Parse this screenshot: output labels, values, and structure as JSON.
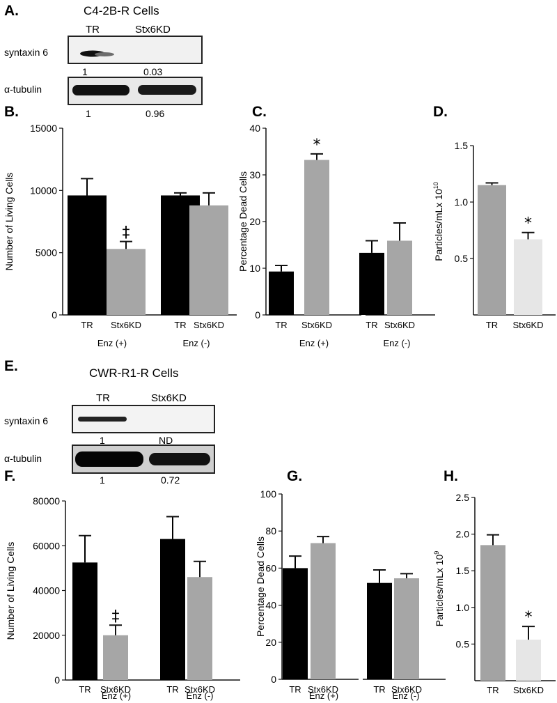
{
  "panels": {
    "A": "A.",
    "B": "B.",
    "C": "C.",
    "D": "D.",
    "E": "E.",
    "F": "F.",
    "G": "G.",
    "H": "H."
  },
  "blot_a": {
    "title": "C4-2B-R Cells",
    "lane_tr": "TR",
    "lane_kd": "Stx6KD",
    "row1_label": "syntaxin 6",
    "row1_q_tr": "1",
    "row1_q_kd": "0.03",
    "row2_label": "α-tubulin",
    "row2_q_tr": "1",
    "row2_q_kd": "0.96"
  },
  "blot_e": {
    "title": "CWR-R1-R Cells",
    "lane_tr": "TR",
    "lane_kd": "Stx6KD",
    "row1_label": "syntaxin 6",
    "row1_q_tr": "1",
    "row1_q_kd": "ND",
    "row2_label": "α-tubulin",
    "row2_q_tr": "1",
    "row2_q_kd": "0.72"
  },
  "colors": {
    "black_bar": "#000000",
    "gray_bar": "#a6a6a6",
    "dark_gray_bar": "#a3a3a3",
    "light_bar": "#e6e6e6"
  },
  "chart_data": [
    {
      "id": "B",
      "type": "bar",
      "ylabel": "Number of Living Cells",
      "ylim": [
        0,
        15000
      ],
      "yticks": [
        "0",
        "5000",
        "10000",
        "15000"
      ],
      "categories": [
        "TR",
        "Stx6KD",
        "TR",
        "Stx6KD"
      ],
      "groups": [
        "Enz (+)",
        "Enz (-)"
      ],
      "values": [
        9600,
        5300,
        9600,
        8800
      ],
      "errors": [
        1350,
        600,
        200,
        1000
      ],
      "colors": [
        "#000000",
        "#a6a6a6",
        "#000000",
        "#a6a6a6"
      ],
      "annotations": [
        {
          "bar": 1,
          "text": "‡"
        }
      ]
    },
    {
      "id": "C",
      "type": "bar",
      "ylabel": "Percentage Dead Cells",
      "ylim": [
        0,
        40
      ],
      "yticks": [
        "0",
        "10",
        "20",
        "30",
        "40"
      ],
      "categories": [
        "TR",
        "Stx6KD",
        "TR",
        "Stx6KD"
      ],
      "groups": [
        "Enz (+)",
        "Enz (-)"
      ],
      "values": [
        9.3,
        33.2,
        13.3,
        15.9
      ],
      "errors": [
        1.3,
        1.3,
        2.6,
        3.8
      ],
      "colors": [
        "#000000",
        "#a6a6a6",
        "#000000",
        "#a6a6a6"
      ],
      "annotations": [
        {
          "bar": 1,
          "text": "*"
        }
      ]
    },
    {
      "id": "D",
      "type": "bar",
      "ylabel": "Particles/mLx 10",
      "ylabel_sup": "10",
      "ylim": [
        0,
        1.5
      ],
      "yticks": [
        "0.5",
        "1.0",
        "1.5"
      ],
      "categories": [
        "TR",
        "Stx6KD"
      ],
      "values": [
        1.15,
        0.67
      ],
      "errors": [
        0.02,
        0.06
      ],
      "colors": [
        "#a3a3a3",
        "#e6e6e6"
      ],
      "annotations": [
        {
          "bar": 1,
          "text": "*"
        }
      ]
    },
    {
      "id": "F",
      "type": "bar",
      "ylabel": "Number of Living Cells",
      "ylim": [
        0,
        80000
      ],
      "yticks": [
        "0",
        "20000",
        "40000",
        "60000",
        "80000"
      ],
      "categories": [
        "TR",
        "Stx6KD",
        "TR",
        "Stx6KD"
      ],
      "groups": [
        "Enz (+)",
        "Enz (-)"
      ],
      "values": [
        52500,
        20000,
        63000,
        46000
      ],
      "errors": [
        12000,
        4500,
        10000,
        7000
      ],
      "colors": [
        "#000000",
        "#a6a6a6",
        "#000000",
        "#a6a6a6"
      ],
      "annotations": [
        {
          "bar": 1,
          "text": "‡"
        }
      ]
    },
    {
      "id": "G",
      "type": "bar",
      "ylabel": "Percentage Dead Cells",
      "ylim": [
        0,
        100
      ],
      "yticks": [
        "0",
        "20",
        "40",
        "60",
        "80",
        "100"
      ],
      "categories": [
        "TR",
        "Stx6KD",
        "TR",
        "Stx6KD"
      ],
      "groups": [
        "Enz (+)",
        "Enz (-)"
      ],
      "values": [
        60,
        73.5,
        52,
        54.5
      ],
      "errors": [
        6.5,
        3.5,
        7,
        2.5
      ],
      "colors": [
        "#000000",
        "#a6a6a6",
        "#000000",
        "#a6a6a6"
      ],
      "annotations": []
    },
    {
      "id": "H",
      "type": "bar",
      "ylabel": "Particles/mLx 10",
      "ylabel_sup": "9",
      "ylim": [
        0,
        2.5
      ],
      "yticks": [
        "0.5",
        "1.0",
        "1.5",
        "2.0",
        "2.5"
      ],
      "categories": [
        "TR",
        "Stx6KD"
      ],
      "values": [
        1.85,
        0.56
      ],
      "errors": [
        0.14,
        0.18
      ],
      "colors": [
        "#a3a3a3",
        "#e6e6e6"
      ],
      "annotations": [
        {
          "bar": 1,
          "text": "*"
        }
      ]
    }
  ]
}
